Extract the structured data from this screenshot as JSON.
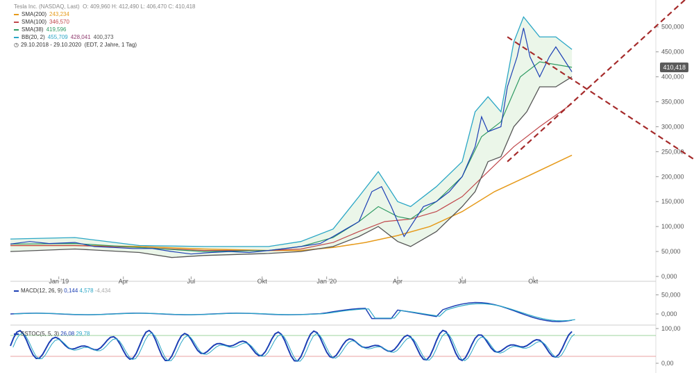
{
  "legend": {
    "title": "Tesla Inc. (NASDAQ, Last)",
    "ohlc": "O: 409,960  H: 412,490  L: 406,470  C: 410,418",
    "sma200": {
      "label": "SMA(200)",
      "value": "243,234",
      "color": "#e69a1a"
    },
    "sma100": {
      "label": "SMA(100)",
      "value": "346,570",
      "color": "#c0474b"
    },
    "sma38": {
      "label": "SMA(38)",
      "value": "419,596",
      "color": "#2e9a63"
    },
    "bb": {
      "label": "BB(20, 2)",
      "v1": "455,709",
      "v2": "428,041",
      "v3": "400,373",
      "color": "#2aa6c6",
      "c2": "#8e3a6e"
    },
    "range": "29.10.2018 - 29.10.2020",
    "range_extra": "(EDT, 2 Jahre, 1 Tag)"
  },
  "price_tag": "410,418",
  "macd": {
    "label": "MACD(12, 26, 9)",
    "v1": "0,144",
    "v2": "4,578",
    "v3": "-4,434"
  },
  "stoch": {
    "label": "SSTOC(5, 5, 3)",
    "v1": "26,08",
    "v2": "29,78"
  },
  "chart_data": {
    "type": "line",
    "title": "Tesla Inc. (NASDAQ, Last)",
    "x_ticks": [
      "Jan '19",
      "Apr",
      "Jul",
      "Okt",
      "Jan '20",
      "Apr",
      "Jul",
      "Okt"
    ],
    "price_axis": [
      "500,000",
      "450,000",
      "400,000",
      "350,000",
      "300,000",
      "250,000",
      "200,000",
      "150,000",
      "100,000",
      "50,000",
      "0,000"
    ],
    "macd_axis": [
      "50,000",
      "0,000"
    ],
    "stoch_axis": [
      "100,00",
      "0,00"
    ],
    "ylim": [
      0,
      500
    ],
    "price_series": [
      [
        0,
        65
      ],
      [
        0.03,
        70
      ],
      [
        0.06,
        66
      ],
      [
        0.1,
        68
      ],
      [
        0.13,
        60
      ],
      [
        0.16,
        58
      ],
      [
        0.19,
        56
      ],
      [
        0.22,
        56
      ],
      [
        0.25,
        50
      ],
      [
        0.28,
        45
      ],
      [
        0.31,
        48
      ],
      [
        0.34,
        50
      ],
      [
        0.37,
        48
      ],
      [
        0.4,
        52
      ],
      [
        0.42,
        55
      ],
      [
        0.45,
        60
      ],
      [
        0.48,
        66
      ],
      [
        0.5,
        80
      ],
      [
        0.52,
        95
      ],
      [
        0.54,
        110
      ],
      [
        0.55,
        140
      ],
      [
        0.56,
        170
      ],
      [
        0.575,
        180
      ],
      [
        0.59,
        140
      ],
      [
        0.6,
        110
      ],
      [
        0.61,
        80
      ],
      [
        0.62,
        100
      ],
      [
        0.64,
        140
      ],
      [
        0.66,
        150
      ],
      [
        0.68,
        170
      ],
      [
        0.7,
        200
      ],
      [
        0.72,
        260
      ],
      [
        0.73,
        320
      ],
      [
        0.74,
        290
      ],
      [
        0.76,
        300
      ],
      [
        0.77,
        380
      ],
      [
        0.785,
        440
      ],
      [
        0.795,
        498
      ],
      [
        0.805,
        440
      ],
      [
        0.82,
        400
      ],
      [
        0.835,
        440
      ],
      [
        0.845,
        460
      ],
      [
        0.86,
        430
      ],
      [
        0.87,
        410
      ]
    ],
    "bb_upper": [
      [
        0,
        75
      ],
      [
        0.1,
        78
      ],
      [
        0.2,
        62
      ],
      [
        0.3,
        60
      ],
      [
        0.4,
        60
      ],
      [
        0.45,
        70
      ],
      [
        0.5,
        95
      ],
      [
        0.54,
        160
      ],
      [
        0.57,
        210
      ],
      [
        0.6,
        150
      ],
      [
        0.62,
        140
      ],
      [
        0.66,
        180
      ],
      [
        0.7,
        230
      ],
      [
        0.72,
        330
      ],
      [
        0.74,
        360
      ],
      [
        0.76,
        330
      ],
      [
        0.78,
        470
      ],
      [
        0.795,
        520
      ],
      [
        0.82,
        480
      ],
      [
        0.845,
        480
      ],
      [
        0.87,
        455
      ]
    ],
    "bb_lower": [
      [
        0,
        50
      ],
      [
        0.1,
        55
      ],
      [
        0.2,
        48
      ],
      [
        0.25,
        38
      ],
      [
        0.3,
        42
      ],
      [
        0.4,
        46
      ],
      [
        0.45,
        50
      ],
      [
        0.5,
        60
      ],
      [
        0.54,
        80
      ],
      [
        0.57,
        100
      ],
      [
        0.6,
        70
      ],
      [
        0.62,
        60
      ],
      [
        0.66,
        90
      ],
      [
        0.7,
        140
      ],
      [
        0.72,
        170
      ],
      [
        0.74,
        230
      ],
      [
        0.76,
        240
      ],
      [
        0.78,
        300
      ],
      [
        0.8,
        330
      ],
      [
        0.82,
        380
      ],
      [
        0.845,
        380
      ],
      [
        0.87,
        400
      ]
    ],
    "sma38": [
      [
        0,
        65
      ],
      [
        0.1,
        66
      ],
      [
        0.2,
        58
      ],
      [
        0.3,
        50
      ],
      [
        0.4,
        52
      ],
      [
        0.45,
        60
      ],
      [
        0.5,
        78
      ],
      [
        0.54,
        110
      ],
      [
        0.57,
        140
      ],
      [
        0.6,
        120
      ],
      [
        0.62,
        115
      ],
      [
        0.66,
        150
      ],
      [
        0.7,
        200
      ],
      [
        0.73,
        280
      ],
      [
        0.76,
        310
      ],
      [
        0.79,
        400
      ],
      [
        0.82,
        430
      ],
      [
        0.87,
        419
      ]
    ],
    "sma100": [
      [
        0,
        62
      ],
      [
        0.1,
        62
      ],
      [
        0.2,
        58
      ],
      [
        0.3,
        52
      ],
      [
        0.4,
        52
      ],
      [
        0.45,
        55
      ],
      [
        0.5,
        68
      ],
      [
        0.54,
        90
      ],
      [
        0.58,
        110
      ],
      [
        0.62,
        115
      ],
      [
        0.66,
        130
      ],
      [
        0.7,
        160
      ],
      [
        0.74,
        210
      ],
      [
        0.78,
        260
      ],
      [
        0.82,
        300
      ],
      [
        0.87,
        346
      ]
    ],
    "sma200": [
      [
        0,
        62
      ],
      [
        0.1,
        62
      ],
      [
        0.2,
        60
      ],
      [
        0.3,
        55
      ],
      [
        0.4,
        52
      ],
      [
        0.45,
        52
      ],
      [
        0.5,
        58
      ],
      [
        0.55,
        68
      ],
      [
        0.6,
        82
      ],
      [
        0.65,
        100
      ],
      [
        0.7,
        130
      ],
      [
        0.75,
        170
      ],
      [
        0.8,
        200
      ],
      [
        0.87,
        243
      ]
    ],
    "trend_up": [
      [
        0.77,
        230
      ],
      [
        1.05,
        560
      ]
    ],
    "trend_down": [
      [
        0.77,
        480
      ],
      [
        1.1,
        200
      ]
    ]
  }
}
